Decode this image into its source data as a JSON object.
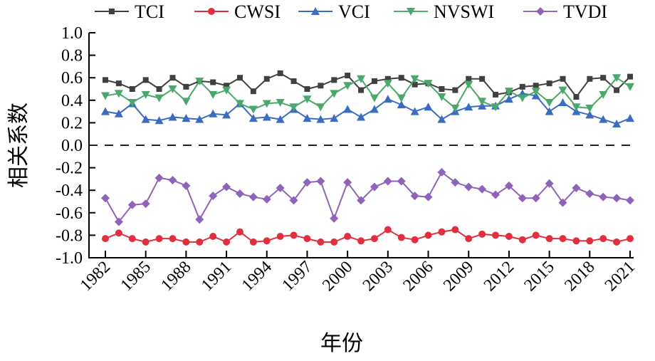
{
  "chart_data": {
    "type": "line",
    "title": "",
    "xlabel": "年份",
    "ylabel": "相关系数",
    "ylim": [
      -1.0,
      1.0
    ],
    "yticks": [
      "1.0",
      "0.8",
      "0.6",
      "0.4",
      "0.2",
      "0.0",
      "-0.2",
      "-0.4",
      "-0.6",
      "-0.8",
      "-1.0"
    ],
    "xticks": [
      "1982",
      "1985",
      "1988",
      "1991",
      "1994",
      "1997",
      "2000",
      "2003",
      "2006",
      "2009",
      "2012",
      "2015",
      "2018",
      "2021"
    ],
    "x": [
      1982,
      1983,
      1984,
      1985,
      1986,
      1987,
      1988,
      1989,
      1990,
      1991,
      1992,
      1993,
      1994,
      1995,
      1996,
      1997,
      1998,
      1999,
      2000,
      2001,
      2002,
      2003,
      2004,
      2005,
      2006,
      2007,
      2008,
      2009,
      2010,
      2011,
      2012,
      2013,
      2014,
      2015,
      2016,
      2017,
      2018,
      2019,
      2020,
      2021
    ],
    "reference_line": {
      "y": 0.0,
      "style": "dashed"
    },
    "legend_position": "top",
    "grid": false,
    "series": [
      {
        "name": "TCI",
        "color": "#404040",
        "marker": "square",
        "values": [
          0.58,
          0.55,
          0.5,
          0.58,
          0.5,
          0.6,
          0.52,
          0.57,
          0.56,
          0.53,
          0.6,
          0.48,
          0.59,
          0.64,
          0.57,
          0.5,
          0.53,
          0.58,
          0.62,
          0.49,
          0.57,
          0.59,
          0.6,
          0.54,
          0.55,
          0.5,
          0.49,
          0.59,
          0.59,
          0.45,
          0.47,
          0.52,
          0.53,
          0.55,
          0.59,
          0.43,
          0.59,
          0.6,
          0.49,
          0.61
        ]
      },
      {
        "name": "CWSI",
        "color": "#e0303f",
        "marker": "circle",
        "values": [
          -0.83,
          -0.78,
          -0.83,
          -0.86,
          -0.83,
          -0.83,
          -0.86,
          -0.86,
          -0.81,
          -0.86,
          -0.77,
          -0.86,
          -0.85,
          -0.81,
          -0.8,
          -0.83,
          -0.86,
          -0.86,
          -0.81,
          -0.85,
          -0.83,
          -0.75,
          -0.82,
          -0.84,
          -0.8,
          -0.77,
          -0.75,
          -0.83,
          -0.79,
          -0.8,
          -0.81,
          -0.84,
          -0.8,
          -0.83,
          -0.83,
          -0.85,
          -0.85,
          -0.83,
          -0.86,
          -0.83
        ]
      },
      {
        "name": "VCI",
        "color": "#3b6cc0",
        "marker": "triangle-up",
        "values": [
          0.3,
          0.28,
          0.37,
          0.23,
          0.22,
          0.25,
          0.24,
          0.23,
          0.28,
          0.27,
          0.37,
          0.24,
          0.25,
          0.23,
          0.32,
          0.24,
          0.23,
          0.24,
          0.32,
          0.25,
          0.32,
          0.41,
          0.36,
          0.3,
          0.34,
          0.23,
          0.3,
          0.34,
          0.35,
          0.35,
          0.41,
          0.46,
          0.44,
          0.3,
          0.38,
          0.3,
          0.27,
          0.23,
          0.19,
          0.24
        ]
      },
      {
        "name": "NVSWI",
        "color": "#4aa86a",
        "marker": "triangle-down",
        "values": [
          0.44,
          0.46,
          0.38,
          0.45,
          0.42,
          0.5,
          0.39,
          0.57,
          0.45,
          0.49,
          0.37,
          0.32,
          0.37,
          0.38,
          0.34,
          0.41,
          0.34,
          0.46,
          0.53,
          0.59,
          0.42,
          0.55,
          0.42,
          0.59,
          0.55,
          0.43,
          0.33,
          0.54,
          0.39,
          0.34,
          0.48,
          0.42,
          0.48,
          0.38,
          0.49,
          0.34,
          0.33,
          0.45,
          0.6,
          0.52
        ]
      },
      {
        "name": "TVDI",
        "color": "#8e63b8",
        "marker": "diamond",
        "values": [
          -0.47,
          -0.68,
          -0.53,
          -0.52,
          -0.29,
          -0.31,
          -0.36,
          -0.66,
          -0.45,
          -0.37,
          -0.43,
          -0.46,
          -0.48,
          -0.38,
          -0.49,
          -0.33,
          -0.32,
          -0.65,
          -0.33,
          -0.49,
          -0.37,
          -0.32,
          -0.32,
          -0.45,
          -0.46,
          -0.24,
          -0.33,
          -0.37,
          -0.39,
          -0.44,
          -0.36,
          -0.47,
          -0.47,
          -0.34,
          -0.51,
          -0.38,
          -0.43,
          -0.46,
          -0.47,
          -0.49
        ]
      }
    ]
  }
}
